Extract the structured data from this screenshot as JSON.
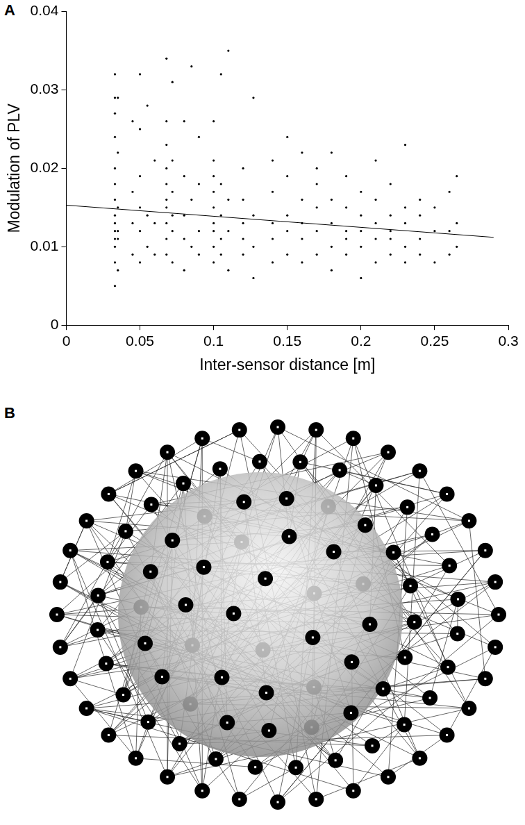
{
  "chart_data": {
    "type": "scatter",
    "panel_label": "A",
    "x_label": "Inter-sensor distance [m]",
    "y_label": "Modulation of PLV",
    "xlim": [
      0,
      0.3
    ],
    "ylim": [
      0,
      0.04
    ],
    "xticks": [
      0,
      0.05,
      0.1,
      0.15,
      0.2,
      0.25,
      0.3
    ],
    "yticks": [
      0,
      0.01,
      0.02,
      0.03,
      0.04
    ],
    "grid": false,
    "series": [
      {
        "type": "scatter",
        "color": "#000000",
        "marker": "circle",
        "x": [
          0.033,
          0.033,
          0.033,
          0.033,
          0.033,
          0.033,
          0.033,
          0.033,
          0.033,
          0.033,
          0.033,
          0.033,
          0.033,
          0.033,
          0.035,
          0.035,
          0.035,
          0.035,
          0.035,
          0.035,
          0.045,
          0.045,
          0.045,
          0.045,
          0.05,
          0.05,
          0.05,
          0.05,
          0.05,
          0.05,
          0.055,
          0.055,
          0.055,
          0.06,
          0.06,
          0.06,
          0.068,
          0.068,
          0.068,
          0.068,
          0.068,
          0.068,
          0.068,
          0.068,
          0.068,
          0.068,
          0.072,
          0.072,
          0.072,
          0.072,
          0.072,
          0.072,
          0.08,
          0.08,
          0.08,
          0.08,
          0.08,
          0.085,
          0.085,
          0.085,
          0.09,
          0.09,
          0.09,
          0.09,
          0.1,
          0.1,
          0.1,
          0.1,
          0.1,
          0.1,
          0.1,
          0.1,
          0.1,
          0.105,
          0.105,
          0.105,
          0.105,
          0.105,
          0.11,
          0.11,
          0.11,
          0.11,
          0.12,
          0.12,
          0.12,
          0.12,
          0.12,
          0.127,
          0.127,
          0.127,
          0.127,
          0.14,
          0.14,
          0.14,
          0.14,
          0.14,
          0.15,
          0.15,
          0.15,
          0.15,
          0.15,
          0.16,
          0.16,
          0.16,
          0.16,
          0.16,
          0.17,
          0.17,
          0.17,
          0.17,
          0.17,
          0.18,
          0.18,
          0.18,
          0.18,
          0.18,
          0.19,
          0.19,
          0.19,
          0.19,
          0.19,
          0.2,
          0.2,
          0.2,
          0.2,
          0.2,
          0.21,
          0.21,
          0.21,
          0.21,
          0.21,
          0.22,
          0.22,
          0.22,
          0.22,
          0.22,
          0.23,
          0.23,
          0.23,
          0.23,
          0.23,
          0.24,
          0.24,
          0.24,
          0.24,
          0.25,
          0.25,
          0.25,
          0.26,
          0.26,
          0.26,
          0.265,
          0.265,
          0.265
        ],
        "values": [
          0.005,
          0.008,
          0.01,
          0.011,
          0.012,
          0.013,
          0.014,
          0.016,
          0.018,
          0.02,
          0.024,
          0.027,
          0.029,
          0.032,
          0.007,
          0.011,
          0.012,
          0.015,
          0.022,
          0.029,
          0.009,
          0.013,
          0.017,
          0.026,
          0.008,
          0.012,
          0.015,
          0.019,
          0.025,
          0.032,
          0.01,
          0.014,
          0.028,
          0.009,
          0.013,
          0.021,
          0.009,
          0.011,
          0.013,
          0.015,
          0.016,
          0.018,
          0.02,
          0.023,
          0.026,
          0.034,
          0.008,
          0.012,
          0.014,
          0.017,
          0.021,
          0.031,
          0.007,
          0.011,
          0.014,
          0.019,
          0.026,
          0.01,
          0.016,
          0.033,
          0.009,
          0.012,
          0.018,
          0.024,
          0.008,
          0.01,
          0.012,
          0.013,
          0.015,
          0.017,
          0.019,
          0.021,
          0.026,
          0.009,
          0.011,
          0.014,
          0.018,
          0.032,
          0.007,
          0.012,
          0.016,
          0.035,
          0.009,
          0.011,
          0.013,
          0.016,
          0.02,
          0.006,
          0.01,
          0.014,
          0.029,
          0.008,
          0.011,
          0.013,
          0.017,
          0.021,
          0.009,
          0.012,
          0.014,
          0.019,
          0.024,
          0.008,
          0.011,
          0.013,
          0.016,
          0.022,
          0.009,
          0.012,
          0.015,
          0.018,
          0.02,
          0.007,
          0.01,
          0.013,
          0.016,
          0.022,
          0.009,
          0.011,
          0.012,
          0.015,
          0.019,
          0.006,
          0.01,
          0.012,
          0.014,
          0.017,
          0.008,
          0.011,
          0.013,
          0.016,
          0.021,
          0.009,
          0.011,
          0.012,
          0.014,
          0.018,
          0.008,
          0.01,
          0.013,
          0.015,
          0.023,
          0.009,
          0.011,
          0.014,
          0.016,
          0.008,
          0.012,
          0.015,
          0.009,
          0.012,
          0.017,
          0.01,
          0.013,
          0.019
        ]
      },
      {
        "type": "line",
        "color": "#000000",
        "line_style": "solid",
        "x": [
          0,
          0.29
        ],
        "values": [
          0.0153,
          0.0112
        ]
      }
    ]
  },
  "diagram": {
    "panel_label": "B"
  }
}
